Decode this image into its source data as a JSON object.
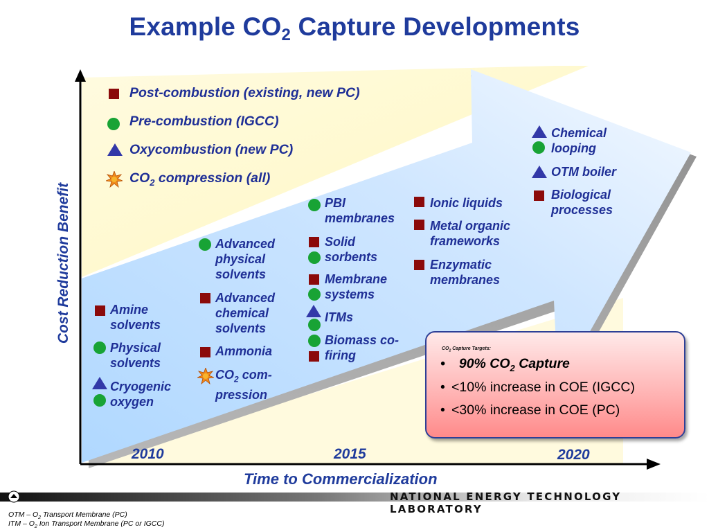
{
  "title": {
    "pre": "Example CO",
    "sub": "2",
    "post": " Capture Developments"
  },
  "axes": {
    "y_label": "Cost Reduction Benefit",
    "x_label": "Time to Commercialization"
  },
  "years": [
    "2010",
    "2015",
    "2020"
  ],
  "legend": [
    {
      "marker": "square",
      "label": "Post-combustion (existing, new PC)"
    },
    {
      "marker": "circle",
      "label": "Pre-combustion (IGCC)"
    },
    {
      "marker": "triangle",
      "label": "Oxycombustion (new PC)"
    },
    {
      "marker": "star",
      "label_pre": "CO",
      "label_sub": "2",
      "label_post": " compression (all)"
    }
  ],
  "col2010": {
    "amine": "Amine solvents",
    "physical": "Physical solvents",
    "cryogenic": "Cryogenic oxygen"
  },
  "col2012": {
    "adv_physical": "Advanced physical solvents",
    "adv_chemical": "Advanced chemical solvents",
    "ammonia": "Ammonia",
    "co2_pre": "CO",
    "co2_sub": "2",
    "co2_post": " com-pression"
  },
  "col2015": {
    "pbi": "PBI membranes",
    "solid": "Solid sorbents",
    "membrane": "Membrane systems",
    "itms": "ITMs",
    "biomass": "Biomass co-firing"
  },
  "col2017": {
    "ionic": "Ionic liquids",
    "mof": "Metal organic frameworks",
    "enzymatic": "Enzymatic membranes"
  },
  "col2020": {
    "chemical": "Chemical looping",
    "otm": "OTM boiler",
    "biological": "Biological processes"
  },
  "targets": {
    "heading_pre": "CO",
    "heading_sub": "2",
    "heading_post": " Capture Targets:",
    "item1_pre": "90% CO",
    "item1_sub": "2",
    "item1_post": " Capture",
    "item2": "<10% increase in COE (IGCC)",
    "item3": "<30% increase in COE (PC)"
  },
  "org": "NATIONAL ENERGY TECHNOLOGY LABORATORY",
  "footnotes": {
    "otm_pre": "OTM – O",
    "otm_sub": "2",
    "otm_post": " Transport Membrane (PC)",
    "itm_pre": "ITM – O",
    "itm_sub": "2",
    "itm_post": " Ion Transport Membrane (PC or IGCC)"
  },
  "colors": {
    "title": "#1f3b9c",
    "square": "#8b0a0a",
    "circle": "#18a335",
    "triangle": "#3238a8",
    "star": "#f08a1c"
  }
}
